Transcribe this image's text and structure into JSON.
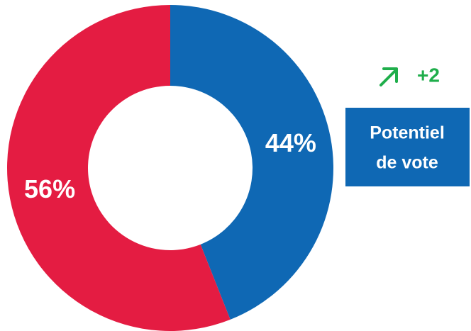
{
  "chart_data": {
    "type": "pie",
    "donut": true,
    "values": [
      44,
      56
    ],
    "value_labels": [
      "44%",
      "56%"
    ],
    "colors": [
      "#0f68b4",
      "#e41c42"
    ],
    "annotation": "+2",
    "box_lines": [
      "Potentiel",
      "de vote"
    ]
  }
}
